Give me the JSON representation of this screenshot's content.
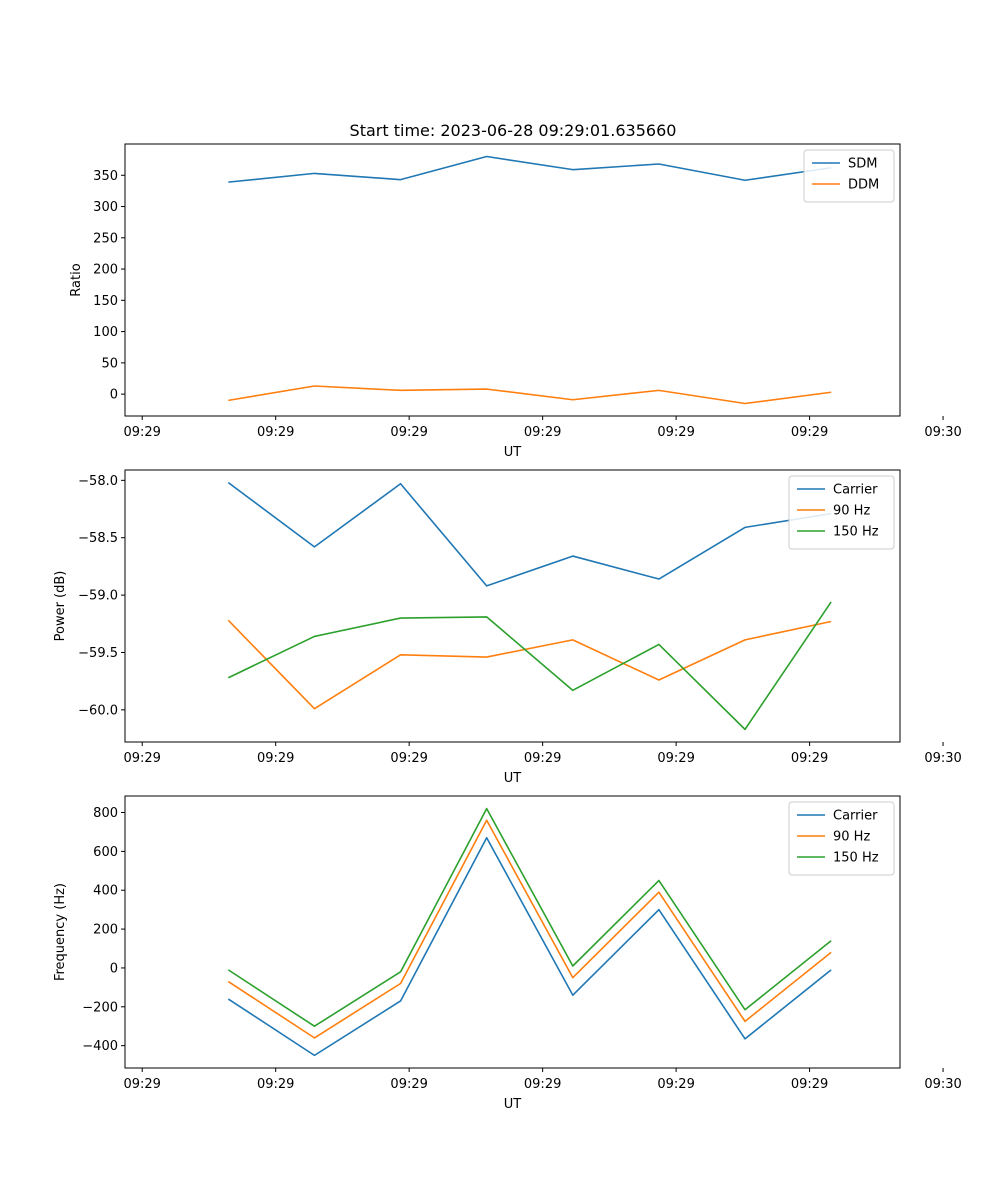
{
  "figure": {
    "title": "Start time: 2023-06-28 09:29:01.635660"
  },
  "chart_data": [
    {
      "type": "line",
      "x": [
        1,
        2,
        3,
        4,
        5,
        6,
        7,
        8
      ],
      "xlim": [
        -0.2,
        8.8
      ],
      "xticks": [
        0,
        1.55,
        3.1,
        4.65,
        6.2,
        7.75,
        9.3
      ],
      "xtick_labels": [
        "09:29",
        "09:29",
        "09:29",
        "09:29",
        "09:29",
        "09:29",
        "09:30"
      ],
      "xlabel": "UT",
      "ylabel": "Ratio",
      "ylim": [
        -35,
        400
      ],
      "yticks": [
        0,
        50,
        100,
        150,
        200,
        250,
        300,
        350
      ],
      "ytick_labels": [
        "0",
        "50",
        "100",
        "150",
        "200",
        "250",
        "300",
        "350"
      ],
      "legend_position": "top-right",
      "series": [
        {
          "name": "SDM",
          "color": "#1f77b4",
          "values": [
            339,
            353,
            343,
            380,
            359,
            368,
            342,
            362
          ]
        },
        {
          "name": "DDM",
          "color": "#ff7f0e",
          "values": [
            -10,
            13,
            6,
            8,
            -9,
            6,
            -15,
            3
          ]
        }
      ]
    },
    {
      "type": "line",
      "x": [
        1,
        2,
        3,
        4,
        5,
        6,
        7,
        8
      ],
      "xlim": [
        -0.2,
        8.8
      ],
      "xticks": [
        0,
        1.55,
        3.1,
        4.65,
        6.2,
        7.75,
        9.3
      ],
      "xtick_labels": [
        "09:29",
        "09:29",
        "09:29",
        "09:29",
        "09:29",
        "09:29",
        "09:30"
      ],
      "xlabel": "UT",
      "ylabel": "Power (dB)",
      "ylim": [
        -60.28,
        -57.91
      ],
      "yticks": [
        -60.0,
        -59.5,
        -59.0,
        -58.5,
        -58.0
      ],
      "ytick_labels": [
        "−60.0",
        "−59.5",
        "−59.0",
        "−58.5",
        "−58.0"
      ],
      "legend_position": "top-right",
      "series": [
        {
          "name": "Carrier",
          "color": "#1f77b4",
          "values": [
            -58.02,
            -58.58,
            -58.03,
            -58.92,
            -58.66,
            -58.86,
            -58.41,
            -58.29
          ]
        },
        {
          "name": "90 Hz",
          "color": "#ff7f0e",
          "values": [
            -59.22,
            -59.99,
            -59.52,
            -59.54,
            -59.39,
            -59.74,
            -59.39,
            -59.23
          ]
        },
        {
          "name": "150 Hz",
          "color": "#2ca02c",
          "values": [
            -59.72,
            -59.36,
            -59.2,
            -59.19,
            -59.83,
            -59.43,
            -60.17,
            -59.06
          ]
        }
      ]
    },
    {
      "type": "line",
      "x": [
        1,
        2,
        3,
        4,
        5,
        6,
        7,
        8
      ],
      "xlim": [
        -0.2,
        8.8
      ],
      "xticks": [
        0,
        1.55,
        3.1,
        4.65,
        6.2,
        7.75,
        9.3
      ],
      "xtick_labels": [
        "09:29",
        "09:29",
        "09:29",
        "09:29",
        "09:29",
        "09:29",
        "09:30"
      ],
      "xlabel": "UT",
      "ylabel": "Frequency (Hz)",
      "ylim": [
        -515,
        885
      ],
      "yticks": [
        -400,
        -200,
        0,
        200,
        400,
        600,
        800
      ],
      "ytick_labels": [
        "−400",
        "−200",
        "0",
        "200",
        "400",
        "600",
        "800"
      ],
      "legend_position": "top-right",
      "series": [
        {
          "name": "Carrier",
          "color": "#1f77b4",
          "values": [
            -160,
            -450,
            -170,
            670,
            -140,
            300,
            -365,
            -10
          ]
        },
        {
          "name": "90 Hz",
          "color": "#ff7f0e",
          "values": [
            -70,
            -360,
            -80,
            760,
            -50,
            390,
            -275,
            80
          ]
        },
        {
          "name": "150 Hz",
          "color": "#2ca02c",
          "values": [
            -10,
            -300,
            -20,
            820,
            10,
            450,
            -215,
            140
          ]
        }
      ]
    }
  ]
}
